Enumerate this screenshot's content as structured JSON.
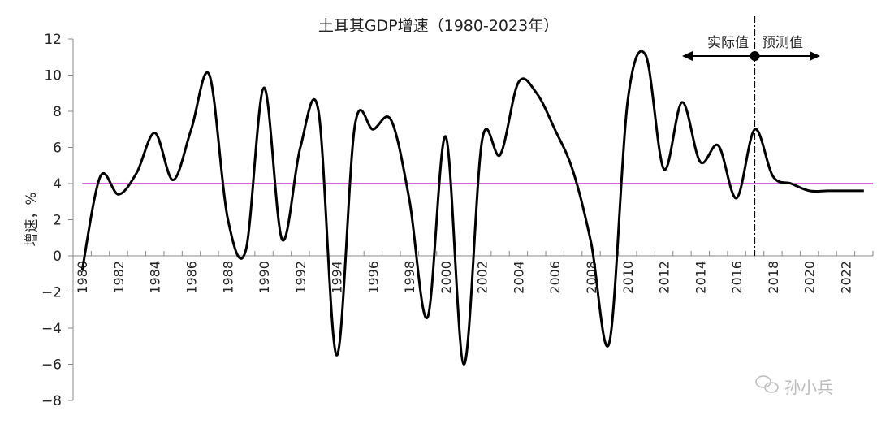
{
  "chart_data": {
    "type": "line",
    "title": "土耳其GDP增速（1980-2023年）",
    "xlabel": "",
    "ylabel": "增速，%",
    "ylim": [
      -8,
      12
    ],
    "yticks": [
      -8,
      -6,
      -4,
      -2,
      0,
      2,
      4,
      6,
      8,
      10,
      12
    ],
    "x": [
      1980,
      1981,
      1982,
      1983,
      1984,
      1985,
      1986,
      1987,
      1988,
      1989,
      1990,
      1991,
      1992,
      1993,
      1994,
      1995,
      1996,
      1997,
      1998,
      1999,
      2000,
      2001,
      2002,
      2003,
      2004,
      2005,
      2006,
      2007,
      2008,
      2009,
      2010,
      2011,
      2012,
      2013,
      2014,
      2015,
      2016,
      2017,
      2018,
      2019,
      2020,
      2021,
      2022,
      2023
    ],
    "xtick_labels": [
      "1980",
      "1982",
      "1984",
      "1986",
      "1988",
      "1990",
      "1992",
      "1994",
      "1996",
      "1998",
      "2000",
      "2002",
      "2004",
      "2006",
      "2008",
      "2010",
      "2012",
      "2014",
      "2016",
      "2018",
      "2020",
      "2022"
    ],
    "series": [
      {
        "name": "GDP增速",
        "color": "#000000",
        "values": [
          -0.8,
          4.4,
          3.4,
          4.6,
          6.8,
          4.2,
          7.0,
          10.0,
          2.1,
          0.3,
          9.3,
          0.9,
          6.0,
          8.0,
          -5.5,
          7.2,
          7.0,
          7.5,
          3.1,
          -3.4,
          6.6,
          -6.0,
          6.4,
          5.6,
          9.6,
          9.0,
          7.0,
          4.7,
          0.7,
          -4.8,
          8.5,
          11.1,
          4.8,
          8.5,
          5.2,
          6.1,
          3.2,
          7.0,
          4.4,
          4.0,
          3.6,
          3.6,
          3.6,
          3.6
        ]
      }
    ],
    "reference_line": {
      "value": 4,
      "color": "#cc33cc"
    },
    "divider": {
      "year": 2017,
      "left_label": "实际值",
      "right_label": "预测值"
    },
    "grid": false
  },
  "watermark": "孙小兵"
}
